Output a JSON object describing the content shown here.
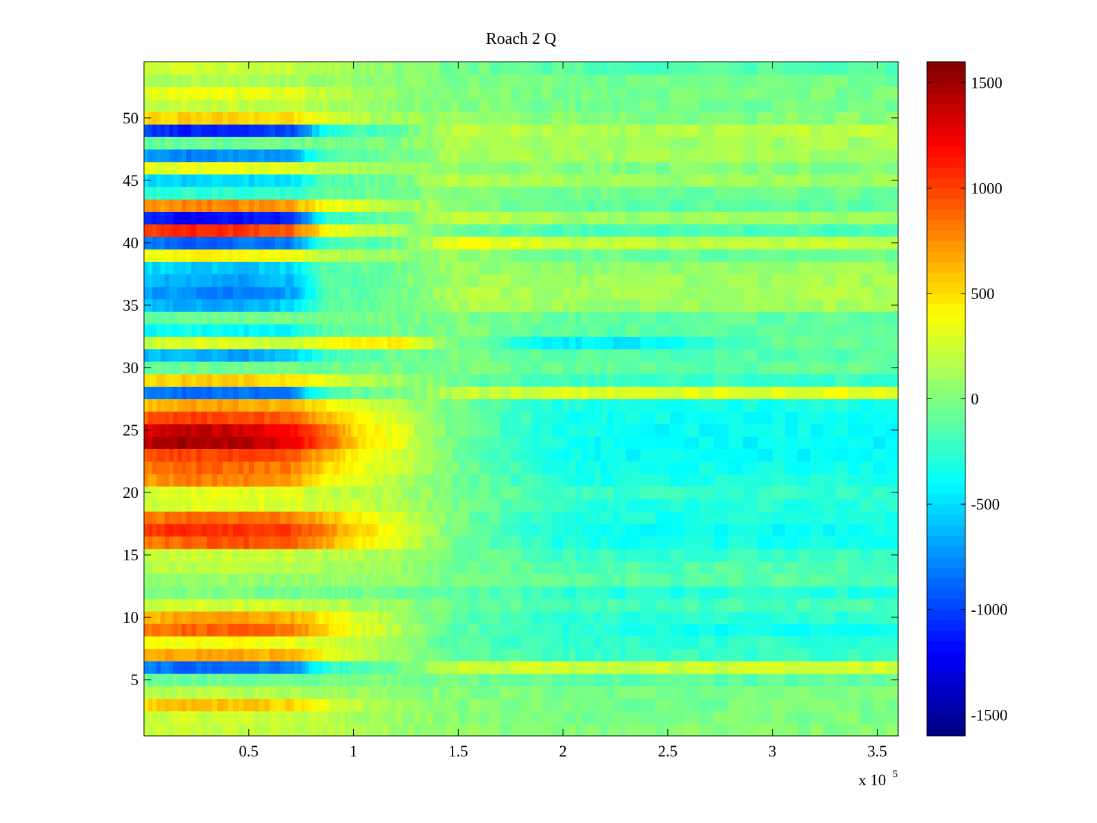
{
  "chart_data": {
    "type": "heatmap",
    "title": "Roach 2 Q",
    "xlabel": "",
    "ylabel": "",
    "x_multiplier_label": {
      "base": "x 10",
      "exponent": "5"
    },
    "xlim": [
      0,
      360000
    ],
    "ylim": [
      0.5,
      54.5
    ],
    "x_ticks": [
      50000,
      100000,
      150000,
      200000,
      250000,
      300000,
      350000
    ],
    "x_tick_labels": [
      "0.5",
      "1",
      "1.5",
      "2",
      "2.5",
      "3",
      "3.5"
    ],
    "y_ticks": [
      5,
      10,
      15,
      20,
      25,
      30,
      35,
      40,
      45,
      50
    ],
    "y_tick_labels": [
      "5",
      "10",
      "15",
      "20",
      "25",
      "30",
      "35",
      "40",
      "45",
      "50"
    ],
    "colormap": "jet",
    "clim": [
      -1600,
      1600
    ],
    "colorbar_ticks": [
      -1500,
      -1000,
      -500,
      0,
      500,
      1000,
      1500
    ],
    "colorbar_tick_labels": [
      "-1500",
      "-1000",
      "-500",
      "0",
      "500",
      "1000",
      "1500"
    ],
    "time_segments_x": [
      0,
      20000,
      45000,
      70000,
      87000,
      100000,
      120000,
      150000,
      200000,
      230000,
      300000,
      360000
    ],
    "rows": [
      1,
      2,
      3,
      4,
      5,
      6,
      7,
      8,
      9,
      10,
      11,
      12,
      13,
      14,
      15,
      16,
      17,
      18,
      19,
      20,
      21,
      22,
      23,
      24,
      25,
      26,
      27,
      28,
      29,
      30,
      31,
      32,
      33,
      34,
      35,
      36,
      37,
      38,
      39,
      40,
      41,
      42,
      43,
      44,
      45,
      46,
      47,
      48,
      49,
      50,
      51,
      52,
      53,
      54
    ],
    "row_values": [
      [
        200,
        220,
        210,
        200,
        180,
        160,
        100,
        60,
        10,
        0,
        20
      ],
      [
        220,
        250,
        240,
        230,
        180,
        140,
        80,
        20,
        -20,
        -30,
        -10
      ],
      [
        500,
        600,
        580,
        520,
        320,
        220,
        100,
        20,
        -30,
        -40,
        -20
      ],
      [
        150,
        180,
        170,
        160,
        120,
        100,
        60,
        10,
        -20,
        -30,
        -20
      ],
      [
        -80,
        -60,
        -70,
        -80,
        -40,
        0,
        0,
        -50,
        -100,
        -120,
        -100
      ],
      [
        -800,
        -900,
        -850,
        -800,
        -300,
        -200,
        -100,
        220,
        250,
        220,
        250
      ],
      [
        600,
        700,
        680,
        620,
        380,
        250,
        100,
        -100,
        -200,
        -220,
        -220
      ],
      [
        350,
        420,
        400,
        350,
        260,
        200,
        100,
        -150,
        -250,
        -260,
        -240
      ],
      [
        800,
        900,
        880,
        850,
        500,
        340,
        160,
        -120,
        -260,
        -300,
        -380
      ],
      [
        600,
        700,
        690,
        650,
        430,
        320,
        150,
        -120,
        -250,
        -300,
        -260
      ],
      [
        220,
        250,
        240,
        230,
        180,
        150,
        80,
        -60,
        -160,
        -180,
        -180
      ],
      [
        -20,
        0,
        -10,
        -20,
        -30,
        -40,
        -50,
        -100,
        -250,
        -300,
        -300
      ],
      [
        50,
        80,
        70,
        60,
        70,
        60,
        50,
        -20,
        -100,
        -130,
        -120
      ],
      [
        150,
        180,
        170,
        150,
        130,
        120,
        90,
        -40,
        -150,
        -160,
        -150
      ],
      [
        200,
        240,
        230,
        220,
        180,
        160,
        120,
        -50,
        -200,
        -240,
        -220
      ],
      [
        800,
        900,
        980,
        900,
        650,
        480,
        300,
        -40,
        -300,
        -350,
        -330
      ],
      [
        1000,
        1100,
        1080,
        1000,
        780,
        560,
        350,
        -40,
        -340,
        -380,
        -380
      ],
      [
        800,
        900,
        880,
        820,
        600,
        450,
        280,
        -30,
        -300,
        -320,
        -320
      ],
      [
        200,
        300,
        320,
        280,
        260,
        240,
        170,
        -30,
        -260,
        -300,
        -280
      ],
      [
        250,
        300,
        310,
        290,
        220,
        200,
        150,
        -30,
        -200,
        -240,
        -240
      ],
      [
        700,
        800,
        790,
        700,
        420,
        300,
        200,
        -50,
        -300,
        -330,
        -320
      ],
      [
        800,
        900,
        870,
        800,
        520,
        380,
        250,
        -40,
        -330,
        -360,
        -360
      ],
      [
        900,
        1000,
        980,
        940,
        620,
        440,
        260,
        -50,
        -350,
        -390,
        -400
      ],
      [
        1400,
        1500,
        1450,
        1250,
        920,
        560,
        330,
        -60,
        -360,
        -390,
        -400
      ],
      [
        1300,
        1400,
        1350,
        1200,
        880,
        520,
        320,
        -60,
        -340,
        -380,
        -380
      ],
      [
        900,
        1000,
        980,
        900,
        620,
        440,
        260,
        -60,
        -320,
        -360,
        -360
      ],
      [
        600,
        700,
        680,
        620,
        420,
        300,
        180,
        -50,
        -300,
        -330,
        -330
      ],
      [
        -800,
        -900,
        -850,
        -800,
        -200,
        -100,
        -50,
        200,
        300,
        300,
        320
      ],
      [
        500,
        550,
        540,
        500,
        300,
        200,
        100,
        -60,
        -200,
        -220,
        -220
      ],
      [
        -100,
        -50,
        -60,
        -50,
        -60,
        -50,
        -40,
        -20,
        -80,
        -100,
        -100
      ],
      [
        -600,
        -600,
        -700,
        -600,
        -200,
        -150,
        -80,
        -20,
        -120,
        -140,
        -140
      ],
      [
        200,
        300,
        280,
        250,
        350,
        400,
        500,
        -50,
        -450,
        -450,
        -100
      ],
      [
        -400,
        -350,
        -420,
        -380,
        -120,
        -100,
        -50,
        -10,
        -100,
        -120,
        -120
      ],
      [
        -100,
        -50,
        -60,
        -50,
        -40,
        -30,
        -20,
        0,
        -80,
        -100,
        -100
      ],
      [
        -600,
        -650,
        -700,
        -500,
        -120,
        -100,
        -50,
        150,
        100,
        80,
        120
      ],
      [
        -700,
        -750,
        -800,
        -700,
        -150,
        -120,
        -60,
        160,
        120,
        100,
        140
      ],
      [
        -600,
        -650,
        -700,
        -600,
        -150,
        -120,
        -60,
        120,
        100,
        80,
        120
      ],
      [
        -500,
        -550,
        -600,
        -500,
        -120,
        -100,
        -50,
        80,
        60,
        40,
        80
      ],
      [
        350,
        420,
        400,
        380,
        180,
        140,
        80,
        50,
        -50,
        -70,
        -60
      ],
      [
        -800,
        -900,
        -850,
        -800,
        -200,
        -150,
        -80,
        380,
        250,
        200,
        220
      ],
      [
        1000,
        1100,
        1050,
        900,
        400,
        280,
        150,
        -60,
        -160,
        -180,
        -170
      ],
      [
        -1100,
        -1200,
        -1150,
        -1100,
        -250,
        -200,
        -100,
        250,
        100,
        80,
        100
      ],
      [
        700,
        800,
        780,
        700,
        380,
        280,
        180,
        30,
        -100,
        -120,
        -110
      ],
      [
        -300,
        -250,
        -260,
        -250,
        -120,
        -80,
        -40,
        30,
        -40,
        -60,
        -60
      ],
      [
        -500,
        -550,
        -520,
        -500,
        -160,
        -120,
        -60,
        200,
        120,
        80,
        100
      ],
      [
        300,
        350,
        340,
        300,
        180,
        130,
        80,
        60,
        20,
        0,
        10
      ],
      [
        -700,
        -800,
        -750,
        -700,
        -150,
        -120,
        -60,
        150,
        120,
        100,
        120
      ],
      [
        -100,
        -50,
        -60,
        -50,
        -30,
        -20,
        -10,
        150,
        100,
        80,
        120
      ],
      [
        -1000,
        -1100,
        -1050,
        -1000,
        -350,
        -200,
        -100,
        180,
        160,
        120,
        200
      ],
      [
        500,
        550,
        540,
        500,
        300,
        200,
        100,
        80,
        30,
        10,
        20
      ],
      [
        200,
        230,
        220,
        200,
        140,
        100,
        60,
        20,
        -40,
        -60,
        -40
      ],
      [
        300,
        350,
        340,
        320,
        200,
        150,
        80,
        30,
        -20,
        -40,
        -20
      ],
      [
        100,
        130,
        120,
        100,
        80,
        60,
        30,
        0,
        -40,
        -60,
        -40
      ],
      [
        200,
        240,
        230,
        200,
        150,
        100,
        40,
        -40,
        -120,
        -150,
        -130
      ]
    ]
  }
}
